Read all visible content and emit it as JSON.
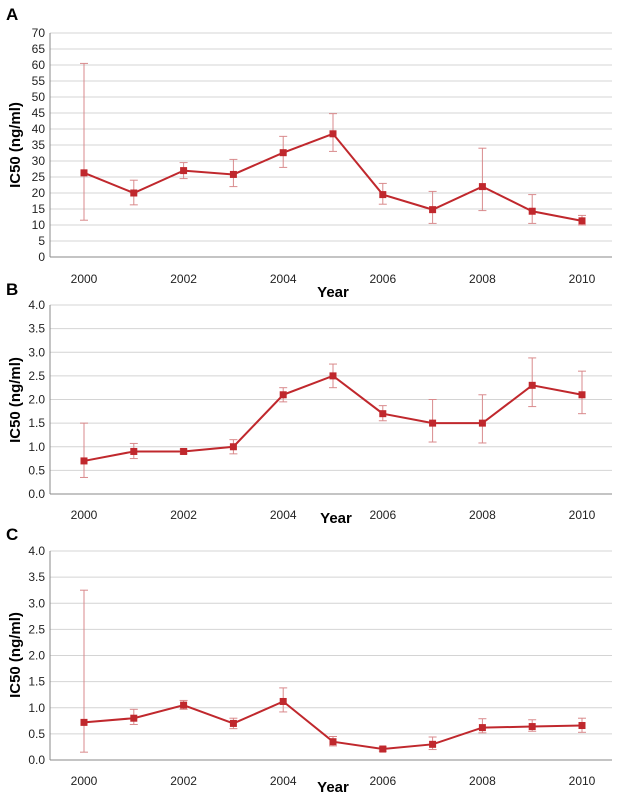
{
  "colors": {
    "series": "#c0282d",
    "errorbar": "#d98a8c",
    "grid": "#d4d4d4",
    "axis": "#888888"
  },
  "chart_data": [
    {
      "type": "line",
      "panel_label": "A",
      "xlabel": "Year",
      "ylabel": "IC50 (ng/ml)",
      "ylim": [
        0,
        70
      ],
      "yticks": [
        "0",
        "5",
        "10",
        "15",
        "20",
        "25",
        "30",
        "35",
        "40",
        "45",
        "50",
        "55",
        "60",
        "65",
        "70"
      ],
      "xticks": [
        "2000",
        "2002",
        "2004",
        "2006",
        "2008",
        "2010"
      ],
      "grid": true,
      "x": [
        2000,
        2001,
        2002,
        2003,
        2004,
        2005,
        2006,
        2007,
        2008,
        2009,
        2010
      ],
      "y": [
        26.3,
        20.0,
        27.0,
        25.8,
        32.6,
        38.5,
        19.5,
        14.8,
        22.0,
        14.3,
        11.3
      ],
      "err_low": [
        11.5,
        16.3,
        24.5,
        22.0,
        28.0,
        33.0,
        16.5,
        10.5,
        14.5,
        10.5,
        10.0
      ],
      "err_high": [
        60.5,
        24.0,
        29.5,
        30.5,
        37.7,
        44.8,
        23.0,
        20.5,
        34.0,
        19.5,
        13.0
      ]
    },
    {
      "type": "line",
      "panel_label": "B",
      "xlabel": "Year",
      "ylabel": "IC50 (ng/ml)",
      "ylim": [
        0,
        4
      ],
      "yticks": [
        "0.0",
        "0.5",
        "1.0",
        "1.5",
        "2.0",
        "2.5",
        "3.0",
        "3.5",
        "4.0"
      ],
      "xticks": [
        "2000",
        "2002",
        "2004",
        "2006",
        "2008",
        "2010"
      ],
      "grid": true,
      "x": [
        2000,
        2001,
        2002,
        2003,
        2004,
        2005,
        2006,
        2007,
        2008,
        2009,
        2010
      ],
      "y": [
        0.7,
        0.9,
        0.9,
        1.0,
        2.1,
        2.5,
        1.7,
        1.5,
        1.5,
        2.3,
        2.1
      ],
      "err_low": [
        0.35,
        0.75,
        0.85,
        0.85,
        1.95,
        2.25,
        1.55,
        1.1,
        1.08,
        1.85,
        1.7
      ],
      "err_high": [
        1.5,
        1.07,
        0.95,
        1.15,
        2.25,
        2.75,
        1.87,
        2.0,
        2.1,
        2.88,
        2.6
      ]
    },
    {
      "type": "line",
      "panel_label": "C",
      "xlabel": "Year",
      "ylabel": "IC50 (ng/ml)",
      "ylim": [
        0,
        4
      ],
      "yticks": [
        "0.0",
        "0.5",
        "1.0",
        "1.5",
        "2.0",
        "2.5",
        "3.0",
        "3.5",
        "4.0"
      ],
      "xticks": [
        "2000",
        "2002",
        "2004",
        "2006",
        "2008",
        "2010"
      ],
      "grid": true,
      "x": [
        2000,
        2001,
        2002,
        2003,
        2004,
        2005,
        2006,
        2007,
        2008,
        2009,
        2010
      ],
      "y": [
        0.72,
        0.8,
        1.05,
        0.7,
        1.12,
        0.35,
        0.21,
        0.3,
        0.62,
        0.64,
        0.66
      ],
      "err_low": [
        0.15,
        0.68,
        0.97,
        0.6,
        0.92,
        0.27,
        0.17,
        0.2,
        0.52,
        0.55,
        0.53
      ],
      "err_high": [
        3.25,
        0.97,
        1.14,
        0.8,
        1.38,
        0.45,
        0.25,
        0.44,
        0.79,
        0.77,
        0.8
      ]
    }
  ]
}
